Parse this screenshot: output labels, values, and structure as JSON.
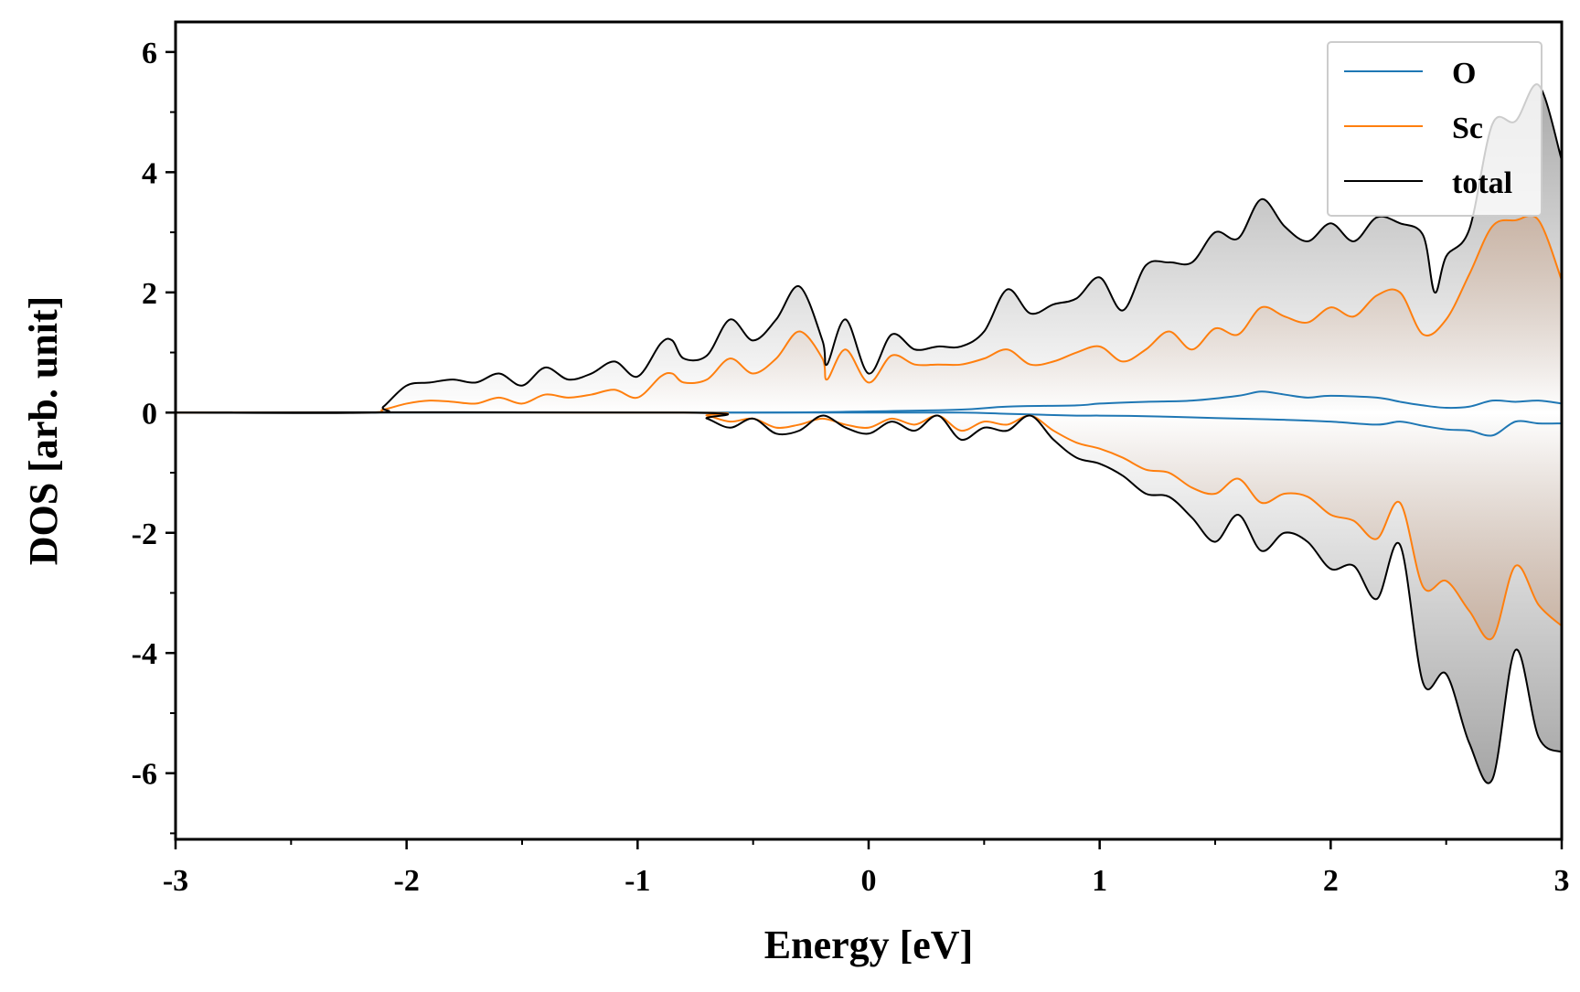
{
  "chart_data": {
    "type": "line",
    "title": "",
    "xlabel": "Energy [eV]",
    "ylabel": "DOS [arb. unit]",
    "xlim": [
      -3,
      3
    ],
    "ylim": [
      -7.1,
      6.5
    ],
    "x_ticks": [
      -3,
      -2,
      -1,
      0,
      1,
      2,
      3
    ],
    "x_tick_labels": [
      "-3",
      "-2",
      "-1",
      "0",
      "1",
      "2",
      "3"
    ],
    "y_ticks": [
      -6,
      -4,
      -2,
      0,
      2,
      4,
      6
    ],
    "y_tick_labels": [
      "-6",
      "-4",
      "-2",
      "0",
      "2",
      "4",
      "6"
    ],
    "grid": false,
    "legend_position": "top-right",
    "series": [
      {
        "name": "O",
        "color": "#1f77b4",
        "up": {
          "x": [
            -3,
            -0.6,
            0,
            0.4,
            0.6,
            0.9,
            1.0,
            1.2,
            1.4,
            1.6,
            1.7,
            1.8,
            1.9,
            2.0,
            2.2,
            2.3,
            2.4,
            2.5,
            2.6,
            2.7,
            2.8,
            2.9,
            3.0
          ],
          "y": [
            0,
            0,
            0.02,
            0.05,
            0.1,
            0.12,
            0.15,
            0.18,
            0.2,
            0.28,
            0.35,
            0.3,
            0.25,
            0.28,
            0.25,
            0.18,
            0.12,
            0.08,
            0.1,
            0.2,
            0.18,
            0.2,
            0.15
          ]
        },
        "down": {
          "x": [
            -3,
            -0.6,
            0,
            0.4,
            0.6,
            0.9,
            1.0,
            1.2,
            1.4,
            1.6,
            1.8,
            2.0,
            2.2,
            2.3,
            2.4,
            2.5,
            2.6,
            2.7,
            2.8,
            2.9,
            3.0
          ],
          "y": [
            0,
            0,
            0,
            0,
            -0.02,
            -0.05,
            -0.05,
            -0.06,
            -0.08,
            -0.1,
            -0.12,
            -0.15,
            -0.2,
            -0.15,
            -0.22,
            -0.28,
            -0.3,
            -0.38,
            -0.15,
            -0.18,
            -0.18
          ]
        }
      },
      {
        "name": "Sc",
        "color": "#ff7f0e",
        "up": {
          "x": [
            -3,
            -2.2,
            -2.1,
            -2.0,
            -1.9,
            -1.8,
            -1.7,
            -1.6,
            -1.5,
            -1.4,
            -1.3,
            -1.2,
            -1.1,
            -1.0,
            -0.9,
            -0.85,
            -0.8,
            -0.7,
            -0.6,
            -0.5,
            -0.4,
            -0.3,
            -0.2,
            -0.18,
            -0.1,
            0,
            0.1,
            0.2,
            0.3,
            0.4,
            0.5,
            0.6,
            0.7,
            0.8,
            0.9,
            1.0,
            1.1,
            1.2,
            1.3,
            1.4,
            1.5,
            1.6,
            1.7,
            1.8,
            1.9,
            2.0,
            2.1,
            2.2,
            2.3,
            2.4,
            2.5,
            2.6,
            2.7,
            2.8,
            2.9,
            3.0
          ],
          "y": [
            0,
            0,
            0.05,
            0.15,
            0.2,
            0.18,
            0.15,
            0.25,
            0.15,
            0.3,
            0.25,
            0.3,
            0.38,
            0.25,
            0.6,
            0.65,
            0.5,
            0.55,
            0.9,
            0.65,
            0.9,
            1.35,
            0.9,
            0.55,
            1.05,
            0.5,
            0.95,
            0.8,
            0.8,
            0.8,
            0.9,
            1.05,
            0.8,
            0.85,
            1.0,
            1.1,
            0.85,
            1.05,
            1.35,
            1.05,
            1.4,
            1.3,
            1.75,
            1.6,
            1.5,
            1.75,
            1.6,
            1.95,
            2.0,
            1.3,
            1.55,
            2.3,
            3.1,
            3.2,
            3.2,
            2.2
          ]
        },
        "down": {
          "x": [
            -3,
            -0.8,
            -0.7,
            -0.6,
            -0.5,
            -0.4,
            -0.3,
            -0.2,
            -0.1,
            0,
            0.1,
            0.2,
            0.3,
            0.4,
            0.5,
            0.6,
            0.7,
            0.8,
            0.9,
            1.0,
            1.1,
            1.2,
            1.3,
            1.4,
            1.5,
            1.6,
            1.7,
            1.8,
            1.9,
            2.0,
            2.1,
            2.2,
            2.3,
            2.4,
            2.5,
            2.6,
            2.7,
            2.8,
            2.9,
            3.0
          ],
          "y": [
            0,
            0,
            -0.05,
            -0.15,
            -0.1,
            -0.25,
            -0.2,
            -0.1,
            -0.2,
            -0.25,
            -0.1,
            -0.2,
            -0.05,
            -0.3,
            -0.15,
            -0.2,
            -0.05,
            -0.3,
            -0.5,
            -0.6,
            -0.75,
            -0.95,
            -1.0,
            -1.25,
            -1.35,
            -1.1,
            -1.5,
            -1.35,
            -1.4,
            -1.7,
            -1.8,
            -2.1,
            -1.5,
            -2.9,
            -2.8,
            -3.3,
            -3.75,
            -2.55,
            -3.2,
            -3.55
          ]
        }
      },
      {
        "name": "total",
        "color": "#000000",
        "up": {
          "x": [
            -3,
            -2.15,
            -2.1,
            -2.0,
            -1.9,
            -1.8,
            -1.7,
            -1.6,
            -1.5,
            -1.4,
            -1.3,
            -1.2,
            -1.1,
            -1.0,
            -0.9,
            -0.85,
            -0.8,
            -0.7,
            -0.6,
            -0.5,
            -0.4,
            -0.3,
            -0.2,
            -0.18,
            -0.1,
            0,
            0.1,
            0.2,
            0.3,
            0.4,
            0.5,
            0.6,
            0.7,
            0.8,
            0.9,
            1.0,
            1.1,
            1.2,
            1.3,
            1.4,
            1.5,
            1.6,
            1.7,
            1.8,
            1.9,
            2.0,
            2.1,
            2.2,
            2.3,
            2.4,
            2.45,
            2.5,
            2.6,
            2.7,
            2.8,
            2.9,
            3.0
          ],
          "y": [
            0,
            0,
            0.1,
            0.45,
            0.5,
            0.55,
            0.5,
            0.65,
            0.45,
            0.75,
            0.55,
            0.65,
            0.85,
            0.6,
            1.15,
            1.2,
            0.9,
            0.95,
            1.55,
            1.2,
            1.55,
            2.1,
            1.2,
            0.8,
            1.55,
            0.65,
            1.3,
            1.05,
            1.1,
            1.1,
            1.35,
            2.05,
            1.65,
            1.8,
            1.9,
            2.25,
            1.7,
            2.45,
            2.5,
            2.5,
            3.0,
            2.9,
            3.55,
            3.1,
            2.85,
            3.15,
            2.85,
            3.25,
            3.15,
            2.95,
            2.0,
            2.6,
            3.05,
            4.8,
            4.85,
            5.45,
            4.2
          ]
        },
        "down": {
          "x": [
            -3,
            -0.8,
            -0.7,
            -0.6,
            -0.5,
            -0.4,
            -0.3,
            -0.2,
            -0.1,
            0,
            0.1,
            0.2,
            0.3,
            0.4,
            0.5,
            0.6,
            0.7,
            0.8,
            0.9,
            1.0,
            1.1,
            1.2,
            1.3,
            1.4,
            1.5,
            1.6,
            1.7,
            1.8,
            1.9,
            2.0,
            2.1,
            2.2,
            2.3,
            2.4,
            2.5,
            2.6,
            2.7,
            2.8,
            2.9,
            3.0
          ],
          "y": [
            0,
            0,
            -0.1,
            -0.25,
            -0.1,
            -0.35,
            -0.3,
            -0.05,
            -0.25,
            -0.35,
            -0.15,
            -0.3,
            -0.05,
            -0.45,
            -0.25,
            -0.3,
            -0.05,
            -0.45,
            -0.75,
            -0.85,
            -1.05,
            -1.35,
            -1.4,
            -1.75,
            -2.15,
            -1.7,
            -2.3,
            -2.0,
            -2.15,
            -2.6,
            -2.55,
            -3.1,
            -2.2,
            -4.5,
            -4.35,
            -5.5,
            -6.1,
            -3.95,
            -5.4,
            -5.65
          ]
        }
      }
    ]
  }
}
